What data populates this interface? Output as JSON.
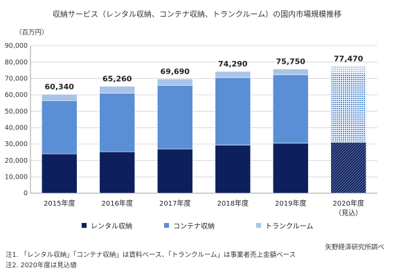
{
  "chart_data": {
    "type": "bar",
    "stacked": true,
    "title": "収納サービス（レンタル収納、コンテナ収納、トランクルーム）の国内市場規模推移",
    "unit_label": "（百万円）",
    "categories": [
      "2015年度",
      "2016年度",
      "2017年度",
      "2018年度",
      "2019年度",
      "2020年度"
    ],
    "category_sublabels": [
      "",
      "",
      "",
      "",
      "",
      "（見込）"
    ],
    "forecast_index": 5,
    "series": [
      {
        "name": "レンタル収納",
        "color": "#0d1f5c",
        "values": [
          24000,
          25300,
          27000,
          29400,
          30500,
          31000
        ]
      },
      {
        "name": "コンテナ収納",
        "color": "#5a8fd6",
        "values": [
          32500,
          35800,
          38800,
          41200,
          41800,
          42500
        ]
      },
      {
        "name": "トランクルーム",
        "color": "#a9c4e8",
        "values": [
          3840,
          4160,
          3890,
          3690,
          3450,
          3970
        ]
      }
    ],
    "totals": [
      60340,
      65260,
      69690,
      74290,
      75750,
      77470
    ],
    "total_labels": [
      "60,340",
      "65,260",
      "69,690",
      "74,290",
      "75,750",
      "77,470"
    ],
    "ylim": [
      0,
      90000
    ],
    "yticks": [
      0,
      10000,
      20000,
      30000,
      40000,
      50000,
      60000,
      70000,
      80000,
      90000
    ],
    "ytick_labels": [
      "0",
      "10,000",
      "20,000",
      "30,000",
      "40,000",
      "50,000",
      "60,000",
      "70,000",
      "80,000",
      "90,000"
    ],
    "grid": true,
    "legend_position": "bottom"
  },
  "source": "矢野経済研究所調べ",
  "notes": [
    "注1. 「レンタル収納」「コンテナ収納」は賃料ベース、「トランクルーム」は事業者売上金額ベース",
    "注2. 2020年度は見込値"
  ]
}
